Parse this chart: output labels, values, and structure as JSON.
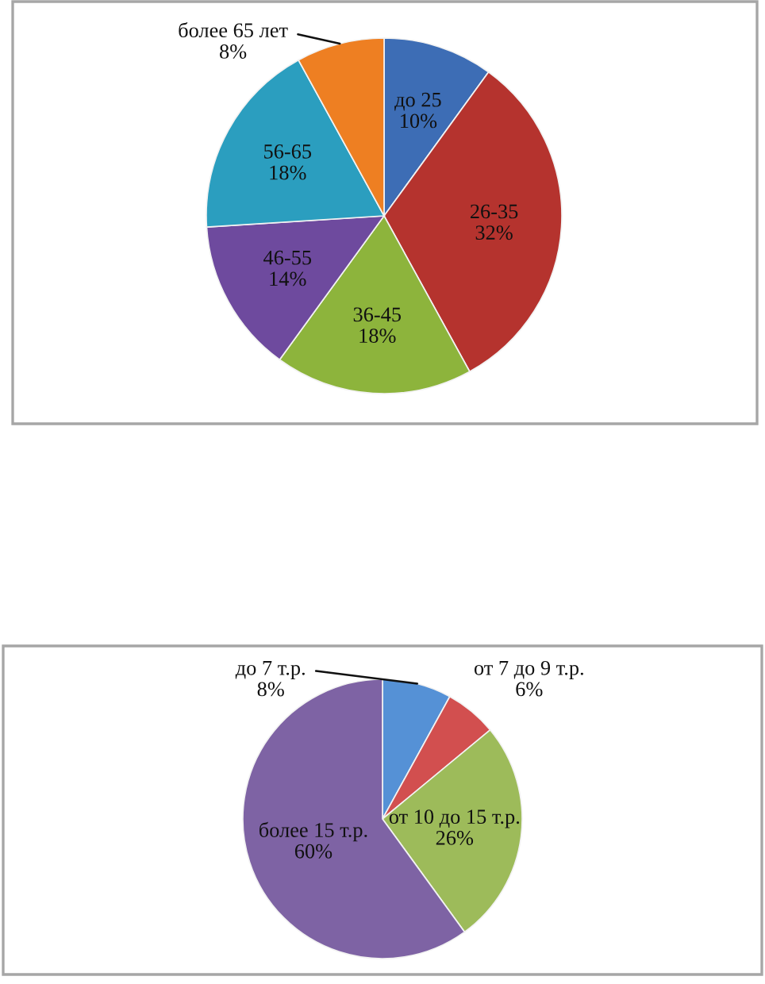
{
  "chart_data": [
    {
      "type": "pie",
      "categories": [
        "до 25",
        "26-35",
        "36-45",
        "46-55",
        "56-65",
        "более 65 лет"
      ],
      "values": [
        10,
        32,
        18,
        14,
        18,
        8
      ],
      "value_labels": [
        "10%",
        "32%",
        "18%",
        "14%",
        "18%",
        "8%"
      ],
      "colors": [
        "#3d6db5",
        "#b5332e",
        "#8db43c",
        "#6e4a9e",
        "#2b9ebf",
        "#ee7f22"
      ]
    },
    {
      "type": "pie",
      "categories": [
        "до 7 т.р.",
        "от 7 до 9 т.р.",
        "от 10 до 15 т.р.",
        "более 15 т.р."
      ],
      "values": [
        8,
        6,
        26,
        60
      ],
      "value_labels": [
        "8%",
        "6%",
        "26%",
        "60%"
      ],
      "colors": [
        "#5591d6",
        "#d24f4f",
        "#9dbb5a",
        "#7e63a4"
      ]
    }
  ]
}
